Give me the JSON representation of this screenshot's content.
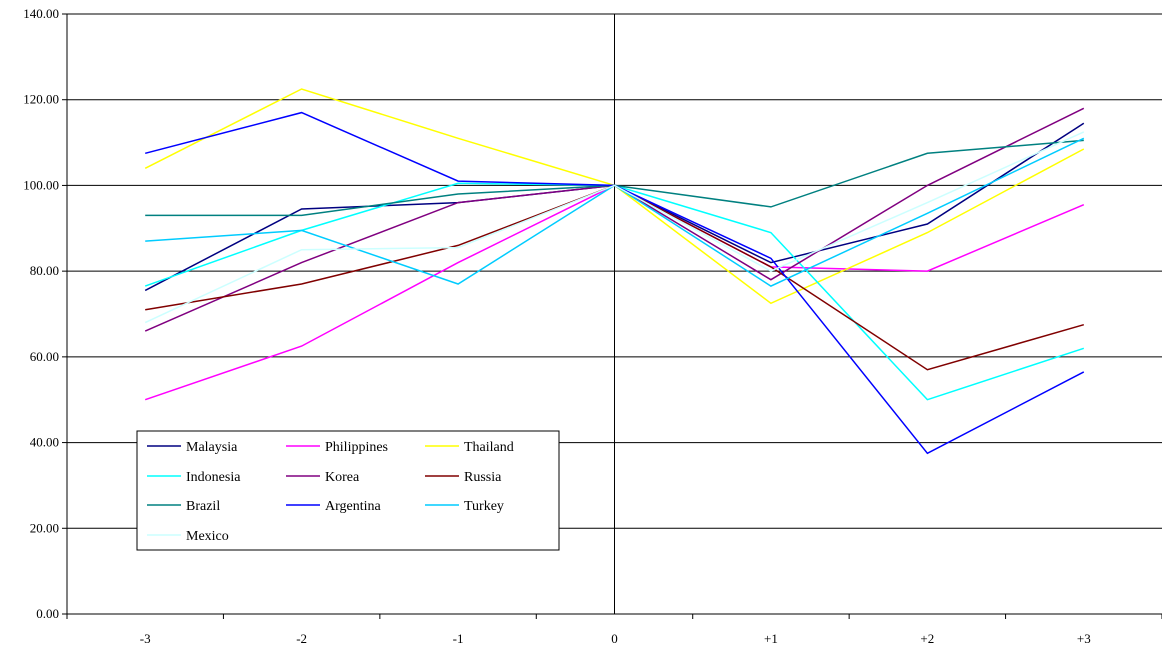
{
  "chart_data": {
    "type": "line",
    "title": "",
    "xlabel": "",
    "ylabel": "",
    "categories": [
      "-3",
      "-2",
      "-1",
      "0",
      "+1",
      "+2",
      "+3"
    ],
    "ylim": [
      0,
      140
    ],
    "y_ticks": [
      "0.00",
      "20.00",
      "40.00",
      "60.00",
      "80.00",
      "100.00",
      "120.00",
      "140.00"
    ],
    "grid": "horizontal",
    "legend_position": "bottom-left",
    "series": [
      {
        "name": "Malaysia",
        "color": "#000080",
        "values": [
          75.5,
          94.5,
          96.0,
          100,
          82.0,
          91.0,
          114.5
        ]
      },
      {
        "name": "Philippines",
        "color": "#ff00ff",
        "values": [
          50.0,
          62.5,
          82.0,
          100,
          81.0,
          80.0,
          95.5
        ]
      },
      {
        "name": "Thailand",
        "color": "#ffff00",
        "values": [
          104.0,
          122.5,
          111.0,
          100,
          72.5,
          89.0,
          108.5
        ]
      },
      {
        "name": "Indonesia",
        "color": "#00ffff",
        "values": [
          76.5,
          89.5,
          100.5,
          100,
          89.0,
          50.0,
          62.0
        ]
      },
      {
        "name": "Korea",
        "color": "#800080",
        "values": [
          66.0,
          82.0,
          96.0,
          100,
          78.0,
          100.0,
          118.0
        ]
      },
      {
        "name": "Russia",
        "color": "#800000",
        "values": [
          71.0,
          77.0,
          86.0,
          100,
          81.0,
          57.0,
          67.5
        ]
      },
      {
        "name": "Brazil",
        "color": "#008080",
        "values": [
          93.0,
          93.0,
          98.0,
          100,
          95.0,
          107.5,
          110.5
        ]
      },
      {
        "name": "Argentina",
        "color": "#0000ff",
        "values": [
          107.5,
          117.0,
          101.0,
          100,
          83.0,
          37.5,
          56.5
        ]
      },
      {
        "name": "Turkey",
        "color": "#00ccff",
        "values": [
          87.0,
          89.5,
          77.0,
          100,
          76.5,
          93.5,
          111.0
        ]
      },
      {
        "name": "Mexico",
        "color": "#ccffff",
        "values": [
          68.0,
          85.0,
          85.5,
          100,
          80.0,
          96.0,
          112.5
        ]
      }
    ]
  }
}
